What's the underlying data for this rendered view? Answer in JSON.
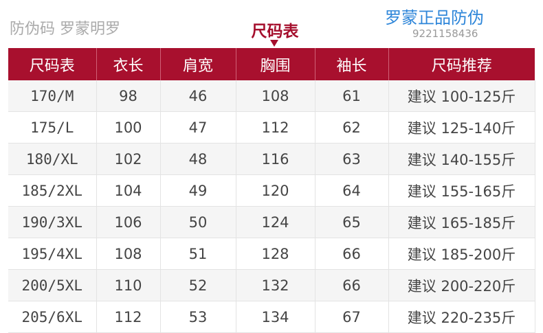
{
  "title": "尺码表",
  "colors": {
    "header_bg": "#a8102e",
    "title": "#a50f2d",
    "watermark": "#2e86d9"
  },
  "headers": [
    "尺码表",
    "衣长",
    "肩宽",
    "胸围",
    "袖长",
    "尺码推荐"
  ],
  "rows": [
    [
      "170/M",
      "98",
      "46",
      "108",
      "61",
      "建议 100-125斤"
    ],
    [
      "175/L",
      "100",
      "47",
      "112",
      "62",
      "建议 125-140斤"
    ],
    [
      "180/XL",
      "102",
      "48",
      "116",
      "63",
      "建议 140-155斤"
    ],
    [
      "185/2XL",
      "104",
      "49",
      "120",
      "64",
      "建议 155-165斤"
    ],
    [
      "190/3XL",
      "106",
      "50",
      "124",
      "65",
      "建议 165-185斤"
    ],
    [
      "195/4XL",
      "108",
      "51",
      "128",
      "66",
      "建议 185-200斤"
    ],
    [
      "200/5XL",
      "110",
      "52",
      "132",
      "66",
      "建议 200-220斤"
    ],
    [
      "205/6XL",
      "112",
      "53",
      "134",
      "67",
      "建议 220-235斤"
    ]
  ],
  "watermark": {
    "text": "罗蒙正品防伪",
    "number": "9221158436",
    "footer": "防伪码 罗蒙明罗"
  }
}
